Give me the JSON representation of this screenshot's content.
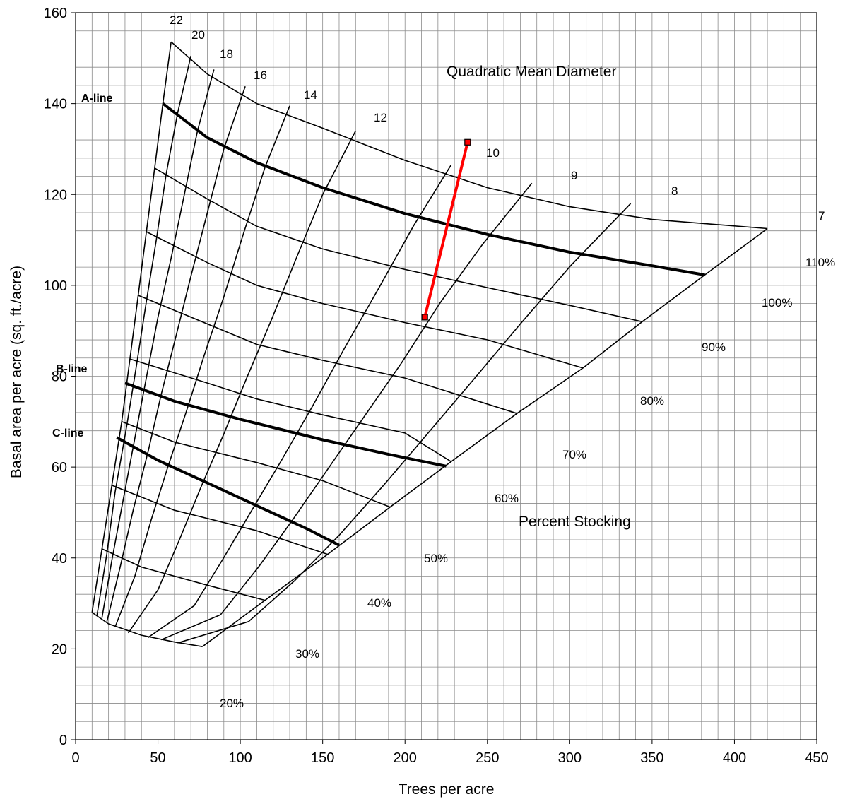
{
  "chart_data": {
    "type": "line",
    "title": "",
    "xlabel": "Trees per acre",
    "ylabel": "Basal area per acre (sq. ft./acre)",
    "xlim": [
      0,
      450
    ],
    "ylim": [
      0,
      160
    ],
    "x_ticks": [
      0,
      50,
      100,
      150,
      200,
      250,
      300,
      350,
      400,
      450
    ],
    "y_ticks": [
      0,
      20,
      40,
      60,
      80,
      100,
      120,
      140,
      160
    ],
    "x_tick_labels": [
      "0",
      "50",
      "100",
      "150",
      "200",
      "250",
      "300",
      "350",
      "400",
      "450"
    ],
    "y_tick_labels": [
      "0",
      "20",
      "40",
      "60",
      "80",
      "100",
      "120",
      "140",
      "160"
    ],
    "grid": {
      "minor_x_step": 10,
      "minor_y_step": 4
    },
    "stocking_curves": [
      {
        "label": "110%",
        "points": [
          [
            58,
            153.6
          ],
          [
            80,
            146.5
          ],
          [
            110,
            140
          ],
          [
            150,
            134.6
          ],
          [
            200,
            127.5
          ],
          [
            250,
            121.5
          ],
          [
            300,
            117.3
          ],
          [
            350,
            114.5
          ],
          [
            420,
            112.5
          ]
        ]
      },
      {
        "label": "100%",
        "points": [
          [
            53,
            140
          ],
          [
            80,
            132.5
          ],
          [
            110,
            127
          ],
          [
            150,
            121.5
          ],
          [
            200,
            115.8
          ],
          [
            250,
            111.2
          ],
          [
            300,
            107.3
          ],
          [
            350,
            104.3
          ],
          [
            382,
            102.3
          ]
        ]
      },
      {
        "label": "90%",
        "points": [
          [
            48,
            125.8
          ],
          [
            80,
            119
          ],
          [
            110,
            113
          ],
          [
            150,
            108
          ],
          [
            200,
            103.5
          ],
          [
            250,
            99.5
          ],
          [
            300,
            95.6
          ],
          [
            344,
            92
          ]
        ]
      },
      {
        "label": "80%",
        "points": [
          [
            43,
            111.8
          ],
          [
            80,
            105
          ],
          [
            110,
            100
          ],
          [
            150,
            96
          ],
          [
            200,
            91.8
          ],
          [
            250,
            88
          ],
          [
            308,
            81.8
          ]
        ]
      },
      {
        "label": "70%",
        "points": [
          [
            38,
            97.8
          ],
          [
            80,
            91.5
          ],
          [
            110,
            87
          ],
          [
            150,
            83.5
          ],
          [
            200,
            79.6
          ],
          [
            268,
            71.8
          ]
        ]
      },
      {
        "label": "60%",
        "points": [
          [
            33,
            83.8
          ],
          [
            80,
            78.5
          ],
          [
            110,
            75
          ],
          [
            150,
            71.5
          ],
          [
            200,
            67.5
          ],
          [
            228,
            61.2
          ]
        ]
      },
      {
        "label": "50%",
        "points": [
          [
            28,
            70
          ],
          [
            60,
            65.5
          ],
          [
            110,
            61
          ],
          [
            150,
            57
          ],
          [
            191,
            51.2
          ]
        ]
      },
      {
        "label": "40%",
        "points": [
          [
            22,
            56
          ],
          [
            60,
            50.5
          ],
          [
            110,
            46
          ],
          [
            153,
            40.8
          ]
        ]
      },
      {
        "label": "30%",
        "points": [
          [
            16,
            42
          ],
          [
            40,
            38
          ],
          [
            80,
            34
          ],
          [
            115,
            30.7
          ]
        ]
      },
      {
        "label": "20%",
        "points": [
          [
            10,
            28
          ],
          [
            20,
            25.5
          ],
          [
            40,
            23
          ],
          [
            60,
            21.5
          ],
          [
            77,
            20.5
          ]
        ]
      }
    ],
    "diameter_lines": [
      {
        "label": "22",
        "points": [
          [
            58,
            153.6
          ],
          [
            53,
            140
          ],
          [
            48,
            125.8
          ],
          [
            43,
            111.8
          ],
          [
            38,
            97.8
          ],
          [
            33,
            83.8
          ],
          [
            28,
            70
          ],
          [
            22,
            56
          ],
          [
            16,
            42
          ],
          [
            10,
            28
          ]
        ]
      },
      {
        "label": "20",
        "points": [
          [
            70,
            150.5
          ],
          [
            62,
            138
          ],
          [
            55,
            124.5
          ],
          [
            49,
            110
          ],
          [
            43,
            96.5
          ],
          [
            37,
            82.5
          ],
          [
            31,
            69
          ],
          [
            24,
            54.5
          ],
          [
            19,
            41
          ],
          [
            13,
            27.4
          ]
        ]
      },
      {
        "label": "18",
        "points": [
          [
            84,
            147.5
          ],
          [
            74,
            134
          ],
          [
            66,
            120
          ],
          [
            58,
            106
          ],
          [
            50,
            93
          ],
          [
            43,
            79.7
          ],
          [
            36,
            66.4
          ],
          [
            29,
            53
          ],
          [
            22,
            39.5
          ],
          [
            16,
            26.8
          ]
        ]
      },
      {
        "label": "16",
        "points": [
          [
            103,
            143.8
          ],
          [
            90,
            130
          ],
          [
            80,
            116
          ],
          [
            70,
            102
          ],
          [
            61,
            88.9
          ],
          [
            52,
            76
          ],
          [
            44,
            63.4
          ],
          [
            35,
            50.6
          ],
          [
            27,
            37.9
          ],
          [
            19,
            26
          ]
        ]
      },
      {
        "label": "14",
        "points": [
          [
            130,
            139.5
          ],
          [
            115,
            126
          ],
          [
            102,
            111.5
          ],
          [
            90,
            97.5
          ],
          [
            78,
            84.5
          ],
          [
            67,
            72
          ],
          [
            56,
            60
          ],
          [
            46,
            48.5
          ],
          [
            36,
            36
          ],
          [
            24,
            24.8
          ]
        ]
      },
      {
        "label": "12",
        "points": [
          [
            170,
            134
          ],
          [
            150,
            120
          ],
          [
            134,
            106
          ],
          [
            119,
            92.5
          ],
          [
            104,
            79.7
          ],
          [
            90,
            67.3
          ],
          [
            76,
            55.5
          ],
          [
            63,
            44
          ],
          [
            50,
            33
          ],
          [
            32,
            23.5
          ]
        ]
      },
      {
        "label": "10",
        "points": [
          [
            228,
            126.5
          ],
          [
            205,
            113
          ],
          [
            185,
            100
          ],
          [
            163,
            86
          ],
          [
            144,
            73.5
          ],
          [
            125,
            61.5
          ],
          [
            107,
            50.5
          ],
          [
            89,
            39.5
          ],
          [
            72,
            29.5
          ],
          [
            44,
            22.5
          ]
        ]
      },
      {
        "label": "9",
        "points": [
          [
            277,
            122.5
          ],
          [
            247,
            109
          ],
          [
            221,
            96
          ],
          [
            198,
            83
          ],
          [
            175,
            71
          ],
          [
            153,
            59.5
          ],
          [
            132,
            48.5
          ],
          [
            111,
            38
          ],
          [
            88,
            27.5
          ],
          [
            52,
            22
          ]
        ]
      },
      {
        "label": "8",
        "points": [
          [
            337,
            118
          ],
          [
            301,
            104.5
          ],
          [
            270,
            91.5
          ],
          [
            241,
            79
          ],
          [
            214,
            67.5
          ],
          [
            187,
            56
          ],
          [
            160,
            45
          ],
          [
            133,
            35
          ],
          [
            105,
            26
          ],
          [
            62,
            21.3
          ]
        ]
      },
      {
        "label": "7",
        "points": [
          [
            420,
            112.5
          ],
          [
            382,
            102.3
          ],
          [
            344,
            92
          ],
          [
            308,
            81.8
          ],
          [
            268,
            71.8
          ],
          [
            228,
            61.2
          ],
          [
            191,
            51.2
          ],
          [
            153,
            40.8
          ],
          [
            115,
            30.7
          ],
          [
            77,
            20.5
          ]
        ]
      }
    ],
    "management_lines": [
      {
        "label": "A-line",
        "points": [
          [
            53,
            140
          ],
          [
            80,
            132.5
          ],
          [
            110,
            127
          ],
          [
            150,
            121.5
          ],
          [
            200,
            115.8
          ],
          [
            250,
            111.2
          ],
          [
            300,
            107.3
          ],
          [
            350,
            104.3
          ],
          [
            382,
            102.3
          ]
        ]
      },
      {
        "label": "B-line",
        "points": [
          [
            30,
            78.5
          ],
          [
            60,
            74.5
          ],
          [
            100,
            70.5
          ],
          [
            150,
            66
          ],
          [
            190,
            62.8
          ],
          [
            225,
            60.2
          ]
        ]
      },
      {
        "label": "C-line",
        "points": [
          [
            25,
            66.5
          ],
          [
            50,
            61.5
          ],
          [
            80,
            56.5
          ],
          [
            110,
            51.5
          ],
          [
            140,
            46.5
          ],
          [
            160,
            42.8
          ]
        ]
      }
    ],
    "highlight_segment": {
      "color": "#ff0000",
      "points": [
        [
          212,
          93
        ],
        [
          238,
          131.5
        ]
      ]
    },
    "annotations": {
      "diameter_title": "Quadratic Mean Diameter",
      "stocking_title": "Percent Stocking",
      "a_line": "A-line",
      "b_line": "B-line",
      "c_line": "C-line",
      "diameters": [
        "22",
        "20",
        "18",
        "16",
        "14",
        "12",
        "10",
        "9",
        "8",
        "7"
      ],
      "stockings": [
        "110%",
        "100%",
        "90%",
        "80%",
        "70%",
        "60%",
        "50%",
        "40%",
        "30%",
        "20%"
      ]
    }
  }
}
